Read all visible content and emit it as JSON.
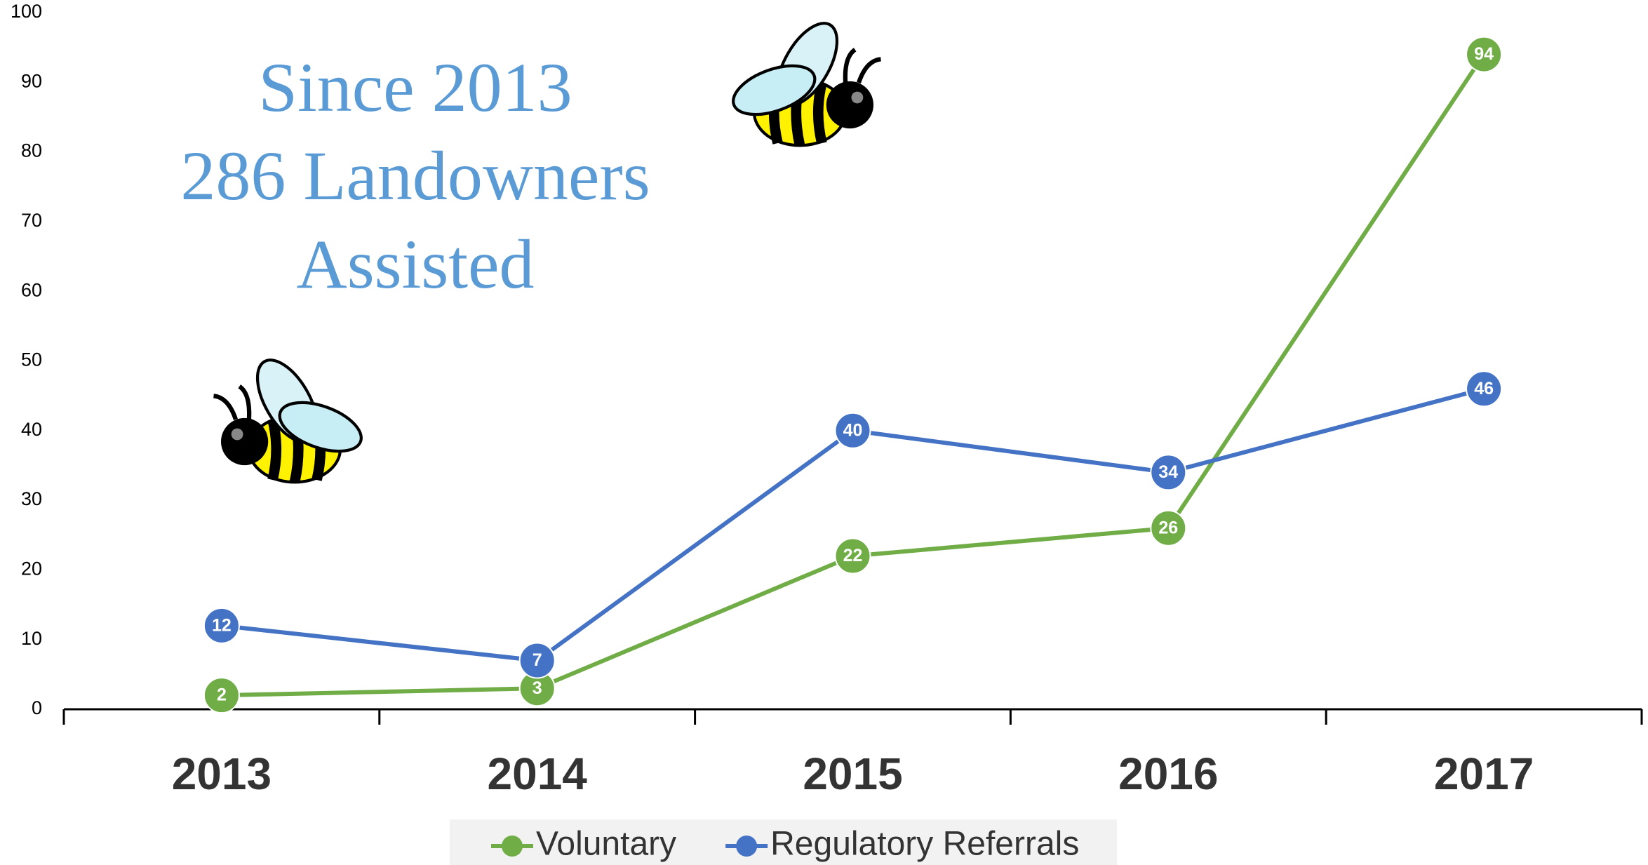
{
  "chart_data": {
    "type": "line",
    "annotations": [
      "Since 2013",
      "286 Landowners",
      "Assisted"
    ],
    "categories": [
      "2013",
      "2014",
      "2015",
      "2016",
      "2017"
    ],
    "series": [
      {
        "name": "Voluntary",
        "color": "#70ad47",
        "values": [
          2,
          3,
          22,
          26,
          94
        ]
      },
      {
        "name": "Regulatory Referrals",
        "color": "#4472c4",
        "values": [
          12,
          7,
          40,
          34,
          46
        ]
      }
    ],
    "ylim": [
      0,
      100
    ],
    "yticks": [
      0,
      10,
      20,
      30,
      40,
      50,
      60,
      70,
      80,
      90,
      100
    ],
    "grid": false,
    "legend": "bottom"
  }
}
